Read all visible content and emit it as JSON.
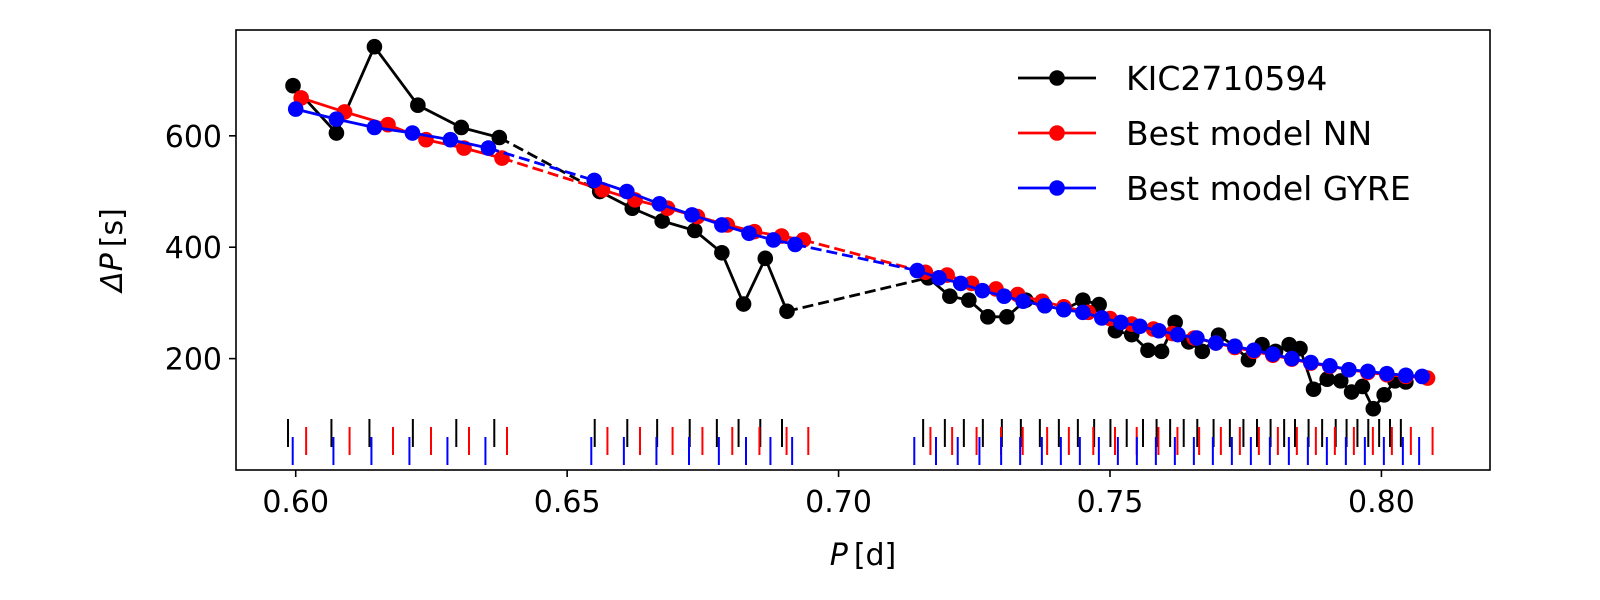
{
  "chart_data": {
    "type": "line",
    "title": "",
    "xlabel": {
      "symbol": "P",
      "unit": "[d]"
    },
    "ylabel": {
      "symbol": "ΔP",
      "unit": "[s]"
    },
    "xlim": [
      0.589,
      0.82
    ],
    "ylim": [
      0,
      790
    ],
    "xticks": [
      0.6,
      0.65,
      0.7,
      0.75,
      0.8
    ],
    "xtick_labels": [
      "0.60",
      "0.65",
      "0.70",
      "0.75",
      "0.80"
    ],
    "yticks": [
      200,
      400,
      600
    ],
    "ytick_labels": [
      "200",
      "400",
      "600"
    ],
    "grid": false,
    "legend_position": "top-right",
    "series": [
      {
        "name": "KIC2710594",
        "color": "#000000",
        "segments": [
          [
            [
              0.5995,
              690
            ],
            [
              0.6075,
              605
            ],
            [
              0.6145,
              760
            ],
            [
              0.6225,
              655
            ],
            [
              0.6305,
              615
            ],
            [
              0.6375,
              597
            ]
          ],
          [
            [
              0.656,
              500
            ],
            [
              0.662,
              470
            ],
            [
              0.6675,
              447
            ],
            [
              0.6735,
              430
            ],
            [
              0.6785,
              390
            ],
            [
              0.6825,
              298
            ],
            [
              0.6865,
              380
            ],
            [
              0.6905,
              285
            ]
          ],
          [
            [
              0.7165,
              345
            ],
            [
              0.7205,
              312
            ],
            [
              0.724,
              305
            ],
            [
              0.7275,
              275
            ],
            [
              0.731,
              275
            ],
            [
              0.7345,
              305
            ],
            [
              0.738,
              295
            ],
            [
              0.7415,
              288
            ],
            [
              0.745,
              305
            ],
            [
              0.748,
              297
            ],
            [
              0.751,
              250
            ],
            [
              0.754,
              243
            ],
            [
              0.757,
              215
            ],
            [
              0.7595,
              213
            ],
            [
              0.762,
              265
            ],
            [
              0.7645,
              230
            ],
            [
              0.767,
              213
            ],
            [
              0.77,
              242
            ],
            [
              0.773,
              222
            ],
            [
              0.7755,
              198
            ],
            [
              0.778,
              225
            ],
            [
              0.7805,
              213
            ],
            [
              0.783,
              225
            ],
            [
              0.785,
              218
            ],
            [
              0.7875,
              145
            ],
            [
              0.79,
              163
            ],
            [
              0.7925,
              160
            ],
            [
              0.7945,
              140
            ],
            [
              0.7965,
              150
            ],
            [
              0.7985,
              110
            ],
            [
              0.8005,
              135
            ],
            [
              0.8025,
              160
            ],
            [
              0.8045,
              158
            ]
          ]
        ],
        "gap_links": [
          [
            [
              0.6375,
              597
            ],
            [
              0.656,
              500
            ]
          ],
          [
            [
              0.6905,
              285
            ],
            [
              0.7165,
              345
            ]
          ]
        ],
        "marks": [
          0.5995,
          0.6075,
          0.6145,
          0.6225,
          0.6305,
          0.6375,
          0.656,
          0.662,
          0.6675,
          0.6735,
          0.6785,
          0.6825,
          0.6865,
          0.6905,
          0.7165,
          0.7205,
          0.724,
          0.7275,
          0.731,
          0.7345,
          0.738,
          0.7415,
          0.745,
          0.748,
          0.751,
          0.754,
          0.757,
          0.7595,
          0.762,
          0.7645,
          0.767,
          0.77,
          0.773,
          0.7755,
          0.778,
          0.7805,
          0.783,
          0.785,
          0.7875,
          0.79,
          0.7925,
          0.7945,
          0.7965,
          0.7985,
          0.8005,
          0.8025,
          0.8045
        ]
      },
      {
        "name": "Best model NN",
        "color": "#ff0000",
        "segments": [
          [
            [
              0.601,
              668
            ],
            [
              0.609,
              643
            ],
            [
              0.617,
              620
            ],
            [
              0.624,
              593
            ],
            [
              0.631,
              578
            ],
            [
              0.638,
              560
            ]
          ],
          [
            [
              0.6565,
              503
            ],
            [
              0.6625,
              485
            ],
            [
              0.6685,
              470
            ],
            [
              0.674,
              455
            ],
            [
              0.6795,
              440
            ],
            [
              0.6845,
              428
            ],
            [
              0.6895,
              420
            ],
            [
              0.6935,
              413
            ]
          ],
          [
            [
              0.716,
              355
            ],
            [
              0.72,
              350
            ],
            [
              0.7245,
              335
            ],
            [
              0.729,
              325
            ],
            [
              0.733,
              315
            ],
            [
              0.7375,
              303
            ],
            [
              0.7415,
              293
            ],
            [
              0.746,
              283
            ],
            [
              0.75,
              272
            ],
            [
              0.754,
              262
            ],
            [
              0.758,
              253
            ],
            [
              0.7615,
              245
            ],
            [
              0.7655,
              237
            ],
            [
              0.7695,
              228
            ],
            [
              0.773,
              220
            ],
            [
              0.7765,
              213
            ],
            [
              0.78,
              206
            ],
            [
              0.7835,
              199
            ],
            [
              0.787,
              192
            ],
            [
              0.7905,
              186
            ],
            [
              0.794,
              180
            ],
            [
              0.7975,
              175
            ],
            [
              0.801,
              171
            ],
            [
              0.8045,
              168
            ],
            [
              0.8085,
              165
            ]
          ]
        ],
        "gap_links": [
          [
            [
              0.638,
              560
            ],
            [
              0.6565,
              503
            ]
          ],
          [
            [
              0.6935,
              413
            ],
            [
              0.716,
              355
            ]
          ]
        ],
        "marks": [
          0.601,
          0.609,
          0.617,
          0.624,
          0.631,
          0.638,
          0.6565,
          0.6625,
          0.6685,
          0.674,
          0.6795,
          0.6845,
          0.6895,
          0.6935,
          0.716,
          0.72,
          0.7245,
          0.729,
          0.733,
          0.7375,
          0.7415,
          0.746,
          0.75,
          0.754,
          0.758,
          0.7615,
          0.7655,
          0.7695,
          0.773,
          0.7765,
          0.78,
          0.7835,
          0.787,
          0.7905,
          0.794,
          0.7975,
          0.801,
          0.8045,
          0.8085
        ]
      },
      {
        "name": "Best model GYRE",
        "color": "#0000ff",
        "segments": [
          [
            [
              0.6,
              648
            ],
            [
              0.6075,
              630
            ],
            [
              0.6145,
              615
            ],
            [
              0.6215,
              605
            ],
            [
              0.6285,
              593
            ],
            [
              0.6355,
              578
            ]
          ],
          [
            [
              0.655,
              520
            ],
            [
              0.661,
              500
            ],
            [
              0.667,
              478
            ],
            [
              0.673,
              458
            ],
            [
              0.6785,
              440
            ],
            [
              0.6835,
              425
            ],
            [
              0.688,
              413
            ],
            [
              0.692,
              405
            ]
          ],
          [
            [
              0.7145,
              358
            ],
            [
              0.7185,
              345
            ],
            [
              0.7225,
              335
            ],
            [
              0.7265,
              322
            ],
            [
              0.7305,
              312
            ],
            [
              0.734,
              303
            ],
            [
              0.738,
              295
            ],
            [
              0.7415,
              288
            ],
            [
              0.745,
              283
            ],
            [
              0.7485,
              273
            ],
            [
              0.752,
              265
            ],
            [
              0.7555,
              258
            ],
            [
              0.759,
              250
            ],
            [
              0.7625,
              243
            ],
            [
              0.766,
              237
            ],
            [
              0.7695,
              228
            ],
            [
              0.773,
              222
            ],
            [
              0.7765,
              215
            ],
            [
              0.78,
              208
            ],
            [
              0.7835,
              200
            ],
            [
              0.787,
              193
            ],
            [
              0.7905,
              187
            ],
            [
              0.794,
              180
            ],
            [
              0.7975,
              177
            ],
            [
              0.801,
              173
            ],
            [
              0.8045,
              170
            ],
            [
              0.8075,
              168
            ]
          ]
        ],
        "gap_links": [
          [
            [
              0.6355,
              578
            ],
            [
              0.655,
              520
            ]
          ],
          [
            [
              0.692,
              405
            ],
            [
              0.7145,
              358
            ]
          ]
        ],
        "marks": [
          0.6,
          0.6075,
          0.6145,
          0.6215,
          0.6285,
          0.6355,
          0.655,
          0.661,
          0.667,
          0.673,
          0.6785,
          0.6835,
          0.688,
          0.692,
          0.7145,
          0.7185,
          0.7225,
          0.7265,
          0.7305,
          0.734,
          0.738,
          0.7415,
          0.745,
          0.7485,
          0.752,
          0.7555,
          0.759,
          0.7625,
          0.766,
          0.7695,
          0.773,
          0.7765,
          0.78,
          0.7835,
          0.787,
          0.7905,
          0.794,
          0.7975,
          0.801,
          0.8045,
          0.8075
        ]
      }
    ]
  }
}
